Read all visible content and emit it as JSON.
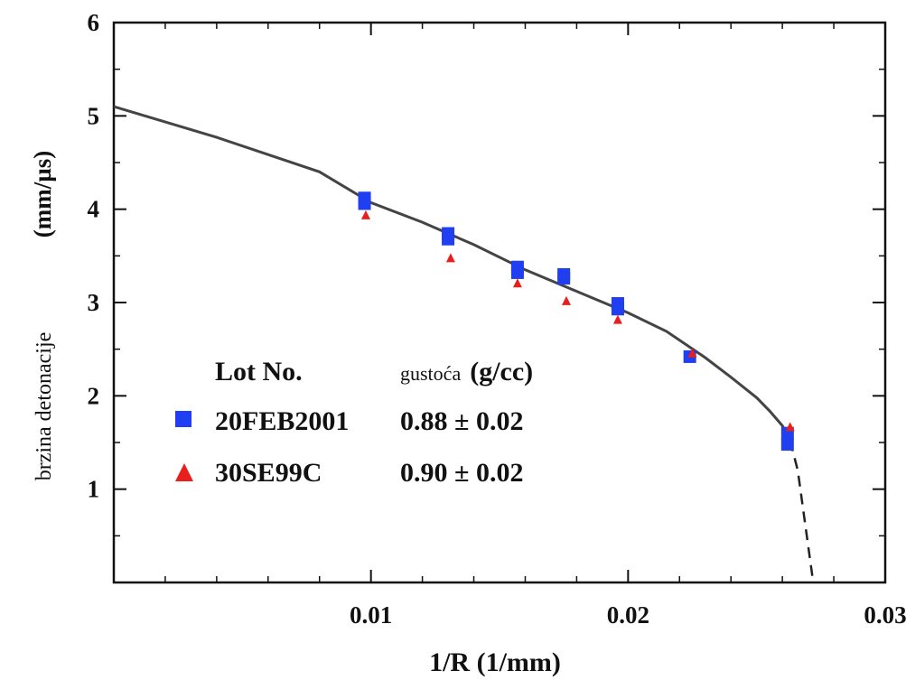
{
  "chart_data": {
    "type": "scatter",
    "title": "",
    "xlabel": "1/R (1/mm)",
    "ylabel": "brzina detonacije",
    "ylabel_unit": "(mm/µs)",
    "xlim": [
      0,
      0.03
    ],
    "ylim": [
      0,
      6
    ],
    "x_ticks": [
      0.01,
      0.02,
      0.03
    ],
    "x_tick_labels": [
      "0.01",
      "0.02",
      "0.03"
    ],
    "y_ticks": [
      1,
      2,
      3,
      4,
      5,
      6
    ],
    "y_tick_labels": [
      "1",
      "2",
      "3",
      "4",
      "5",
      "6"
    ],
    "grid": false,
    "legend": {
      "placement": "lower-left",
      "header_lot": "Lot No.",
      "header_density_word": "gustoća",
      "header_density_unit": "(g/cc)"
    },
    "series": [
      {
        "name": "20FEB2001",
        "density": "0.88 ± 0.02",
        "marker": "square",
        "color": "#1f3ff0",
        "points": [
          [
            0.00975,
            4.12
          ],
          [
            0.00975,
            4.06
          ],
          [
            0.013,
            3.74
          ],
          [
            0.013,
            3.68
          ],
          [
            0.0157,
            3.38
          ],
          [
            0.0157,
            3.32
          ],
          [
            0.0175,
            3.3
          ],
          [
            0.0175,
            3.26
          ],
          [
            0.0196,
            2.99
          ],
          [
            0.0196,
            2.93
          ],
          [
            0.0224,
            2.42
          ],
          [
            0.0262,
            1.6
          ],
          [
            0.0262,
            1.48
          ]
        ]
      },
      {
        "name": "30SE99C",
        "density": "0.90 ± 0.02",
        "marker": "triangle",
        "color": "#e8201c",
        "points": [
          [
            0.0098,
            3.94
          ],
          [
            0.0131,
            3.48
          ],
          [
            0.0157,
            3.21
          ],
          [
            0.0176,
            3.02
          ],
          [
            0.0196,
            2.82
          ],
          [
            0.0225,
            2.46
          ],
          [
            0.0263,
            1.67
          ]
        ]
      }
    ],
    "fit_curve": {
      "color": "#444444",
      "solid": [
        [
          0.0,
          5.1
        ],
        [
          0.004,
          4.77
        ],
        [
          0.008,
          4.4
        ],
        [
          0.01,
          4.07
        ],
        [
          0.012,
          3.86
        ],
        [
          0.014,
          3.62
        ],
        [
          0.016,
          3.35
        ],
        [
          0.018,
          3.12
        ],
        [
          0.02,
          2.89
        ],
        [
          0.0215,
          2.69
        ],
        [
          0.023,
          2.41
        ],
        [
          0.024,
          2.2
        ],
        [
          0.025,
          1.98
        ],
        [
          0.0255,
          1.84
        ],
        [
          0.026,
          1.68
        ],
        [
          0.0263,
          1.52
        ]
      ],
      "dashed": [
        [
          0.0263,
          1.52
        ],
        [
          0.0266,
          1.2
        ],
        [
          0.0268,
          0.8
        ],
        [
          0.027,
          0.4
        ],
        [
          0.0272,
          0.0
        ]
      ]
    }
  }
}
